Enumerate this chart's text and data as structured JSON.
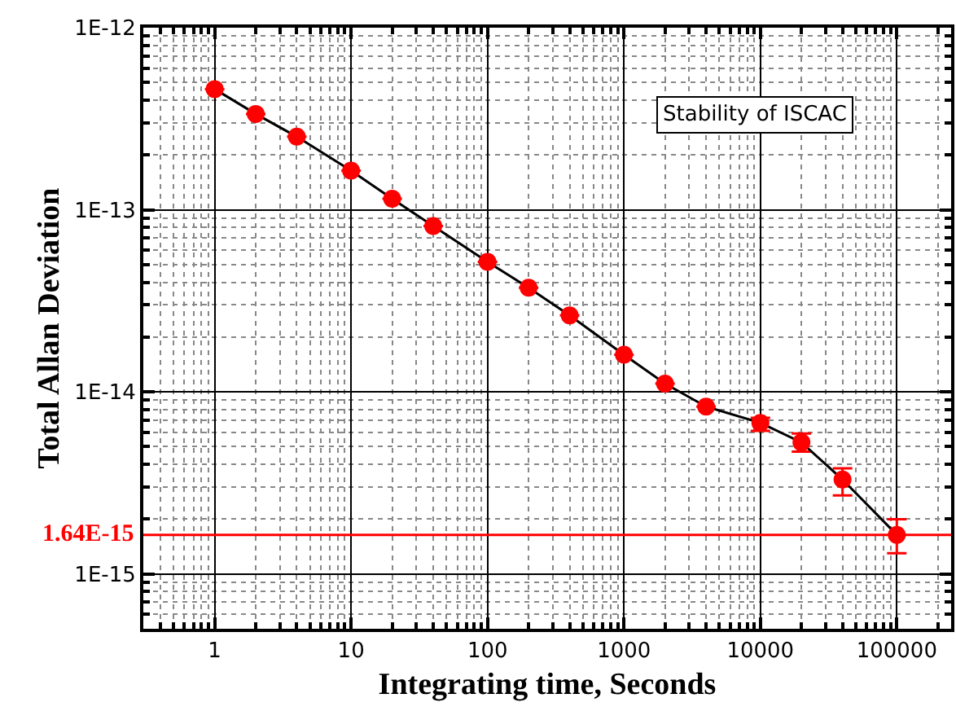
{
  "chart_data": {
    "type": "line",
    "xlabel": "Integrating time, Seconds",
    "ylabel": "Total Allan Deviation",
    "log": "xy",
    "grid": true,
    "marker": "circle",
    "line_style": "solid",
    "x": [
      1,
      2,
      4,
      10,
      20,
      40,
      100,
      200,
      400,
      1000,
      2000,
      4000,
      10000,
      20000,
      40000,
      100000
    ],
    "series": [
      {
        "color": "#000000",
        "colors": [
          "#ff0000",
          "#ff0000",
          "#ff0000",
          "#ff0000",
          "#ff0000",
          "#ff0000",
          "#ff0000",
          "#ff0000",
          "#ff0000",
          "#ff0000",
          "#ff0000",
          "#ff0000",
          "#ff0000",
          "#ff0000",
          "#ff0000",
          "#ff0000"
        ],
        "values": [
          4.6e-13,
          3.36e-13,
          2.52e-13,
          1.64e-13,
          1.15e-13,
          8.15e-14,
          5.18e-14,
          3.73e-14,
          2.63e-14,
          1.6e-14,
          1.11e-14,
          8.3e-15,
          6.76e-15,
          5.28e-15,
          3.3e-15,
          1.64e-15
        ],
        "errors": [
          null,
          null,
          null,
          null,
          null,
          null,
          null,
          null,
          null,
          null,
          null,
          null,
          [
            6.1e-15,
            7.2e-15
          ],
          [
            4.7e-15,
            5.9e-15
          ],
          [
            2.7e-15,
            3.8e-15
          ],
          [
            1.3e-15,
            2e-15
          ]
        ]
      }
    ],
    "xlim": [
      0.3,
      250000
    ],
    "xticks": [
      1,
      10,
      100,
      1000,
      10000,
      100000
    ],
    "ylim": [
      5e-16,
      1e-12
    ],
    "yticks": [
      {
        "value": 1e-15,
        "label": "1E-15"
      },
      {
        "value": 1e-14,
        "label": "1E-14"
      },
      {
        "value": 1e-13,
        "label": "1E-13"
      },
      {
        "value": 1e-12,
        "label": "1E-12"
      }
    ],
    "ref_lines": [
      {
        "axis": "y",
        "value": 1.64e-15,
        "label": "1.64E-15",
        "color": "#ff0000"
      }
    ],
    "annotations": [
      "Stability of ISCAC"
    ]
  }
}
